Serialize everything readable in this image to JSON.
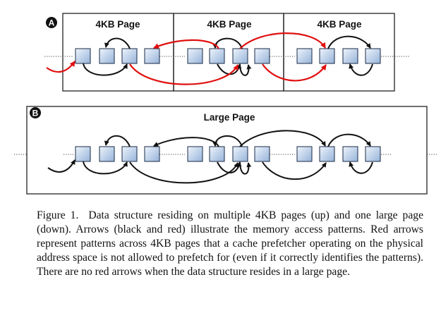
{
  "figure": {
    "badge_a": "A",
    "badge_b": "B",
    "small_pages": [
      {
        "title": "4KB Page"
      },
      {
        "title": "4KB Page"
      },
      {
        "title": "4KB Page"
      }
    ],
    "large_page": {
      "title": "Large Page"
    },
    "colors": {
      "border": "#222222",
      "black_arrow": "#111111",
      "red_arrow": "#e01010",
      "cell_fill_top": "#e9f1fb",
      "cell_fill_bottom": "#9db8db",
      "cell_border": "#1a2a44"
    }
  },
  "caption": {
    "label": "Figure 1.",
    "text": "Data structure residing on multiple 4KB pages (up) and one large page (down). Arrows (black and red) illustrate the memory access patterns. Red arrows represent patterns across 4KB pages that a cache prefetcher operating on the physical address space is not allowed to prefetch for (even if it correctly identifies the patterns). There are no red arrows when the data structure resides in a large page."
  }
}
